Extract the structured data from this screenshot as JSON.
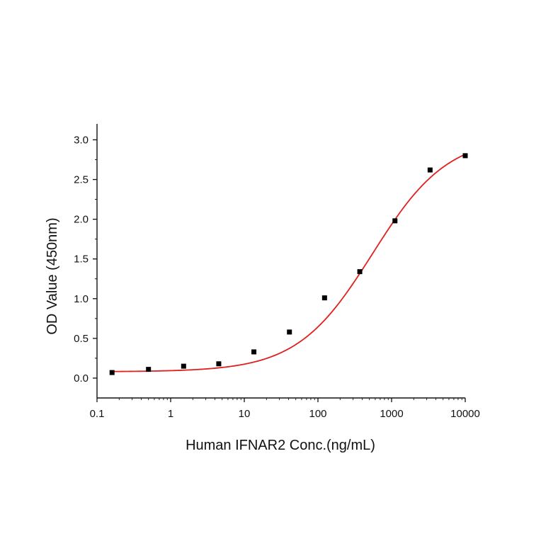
{
  "chart_data": {
    "type": "scatter",
    "title": "",
    "xlabel": "Human IFNAR2 Conc.(ng/mL)",
    "ylabel": "OD Value (450nm)",
    "x_scale": "log",
    "xlim": [
      0.1,
      10000
    ],
    "ylim": [
      -0.25,
      3.2
    ],
    "x_ticks": [
      0.1,
      1,
      10,
      100,
      1000,
      10000
    ],
    "x_tick_labels": [
      "0.1",
      "1",
      "10",
      "100",
      "1000",
      "10000"
    ],
    "y_ticks": [
      0.0,
      0.5,
      1.0,
      1.5,
      2.0,
      2.5,
      3.0
    ],
    "y_tick_labels": [
      "0.0",
      "0.5",
      "1.0",
      "1.5",
      "2.0",
      "2.5",
      "3.0"
    ],
    "grid": false,
    "legend": "none",
    "series": [
      {
        "kind": "points",
        "color": "#000000",
        "marker": "square",
        "x": [
          0.16,
          0.5,
          1.5,
          4.5,
          13.5,
          41,
          123,
          370,
          1111,
          3333,
          10000
        ],
        "y": [
          0.07,
          0.11,
          0.15,
          0.18,
          0.33,
          0.58,
          1.01,
          1.34,
          1.98,
          2.62,
          2.8
        ]
      },
      {
        "kind": "fit",
        "color": "#e02020",
        "model": "4PL",
        "params": {
          "bottom": 0.08,
          "top": 3.05,
          "ec50": 550,
          "hill": 0.85
        },
        "x_range": [
          0.16,
          10000
        ]
      }
    ]
  }
}
